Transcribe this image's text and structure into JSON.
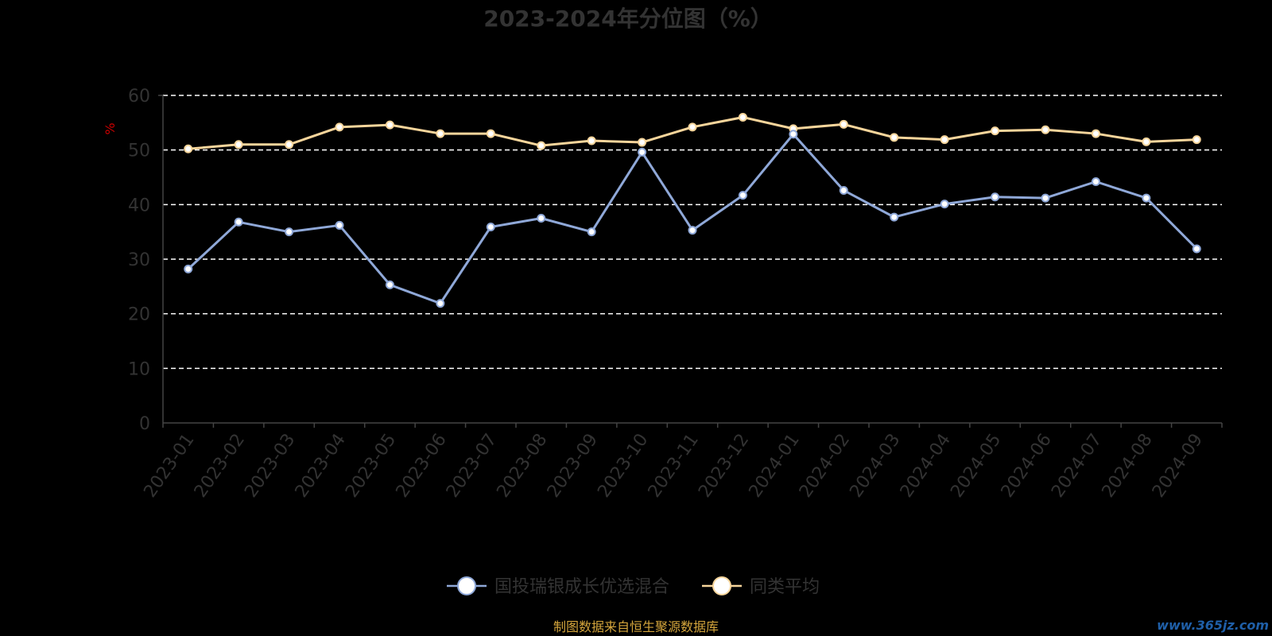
{
  "chart_data": {
    "type": "line",
    "title": "2023-2024年分位图（%）",
    "ylabel": "%",
    "ylim": [
      0,
      60
    ],
    "yticks": [
      0,
      10,
      20,
      30,
      40,
      50,
      60
    ],
    "grid": true,
    "legend_position": "bottom-center",
    "categories": [
      "2023-01",
      "2023-02",
      "2023-03",
      "2023-04",
      "2023-05",
      "2023-06",
      "2023-07",
      "2023-08",
      "2023-09",
      "2023-10",
      "2023-11",
      "2023-12",
      "2024-01",
      "2024-02",
      "2024-03",
      "2024-04",
      "2024-05",
      "2024-06",
      "2024-07",
      "2024-08",
      "2024-09"
    ],
    "series": [
      {
        "name": "国投瑞银成长优选混合",
        "color": "#8fa8d8",
        "values": [
          28.2,
          36.8,
          35.0,
          36.2,
          25.3,
          21.9,
          35.9,
          37.5,
          35.0,
          49.6,
          35.3,
          41.7,
          52.9,
          42.6,
          37.7,
          40.1,
          41.4,
          41.2,
          44.2,
          41.2,
          31.9
        ]
      },
      {
        "name": "同类平均",
        "color": "#f7d59b",
        "values": [
          50.2,
          51.0,
          51.0,
          54.2,
          54.6,
          53.0,
          53.0,
          50.8,
          51.7,
          51.4,
          54.2,
          56.0,
          53.9,
          54.7,
          52.3,
          51.9,
          53.5,
          53.7,
          53.0,
          51.5,
          51.9
        ]
      }
    ]
  },
  "footer": {
    "source": "制图数据来自恒生聚源数据库",
    "watermark": "www.365jz.com"
  }
}
